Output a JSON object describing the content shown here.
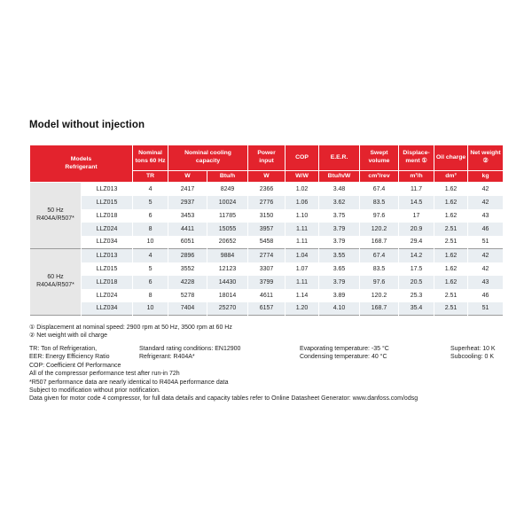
{
  "title": "Model without injection",
  "colors": {
    "header_red": "#e3232d",
    "row_stripe": "#e9eef2",
    "group_cell_gray": "#e7e7e7",
    "divider_gray": "#9b9b9b"
  },
  "table": {
    "header": {
      "models": "Models\nRefrigerant",
      "nominal_tons": "Nominal\ntons 60 Hz",
      "cooling_capacity": "Nominal cooling\ncapacity",
      "power_input": "Power\ninput",
      "cop": "COP",
      "eer": "E.E.R.",
      "swept_volume": "Swept\nvolume",
      "displacement": "Displace-\nment ①",
      "oil_charge": "Oil charge",
      "net_weight": "Net weight\n②",
      "units": [
        "TR",
        "W",
        "Btu/h",
        "W",
        "W/W",
        "Btu/h/W",
        "cm³/rev",
        "m³/h",
        "dm³",
        "kg"
      ]
    },
    "groups": [
      {
        "label": "50 Hz\nR404A/R507*",
        "rows": [
          [
            "LLZ013",
            "4",
            "2417",
            "8249",
            "2366",
            "1.02",
            "3.48",
            "67.4",
            "11.7",
            "1.62",
            "42"
          ],
          [
            "LLZ015",
            "5",
            "2937",
            "10024",
            "2776",
            "1.06",
            "3.62",
            "83.5",
            "14.5",
            "1.62",
            "42"
          ],
          [
            "LLZ018",
            "6",
            "3453",
            "11785",
            "3150",
            "1.10",
            "3.75",
            "97.6",
            "17",
            "1.62",
            "43"
          ],
          [
            "LLZ024",
            "8",
            "4411",
            "15055",
            "3957",
            "1.11",
            "3.79",
            "120.2",
            "20.9",
            "2.51",
            "46"
          ],
          [
            "LLZ034",
            "10",
            "6051",
            "20652",
            "5458",
            "1.11",
            "3.79",
            "168.7",
            "29.4",
            "2.51",
            "51"
          ]
        ]
      },
      {
        "label": "60 Hz\nR404A/R507*",
        "rows": [
          [
            "LLZ013",
            "4",
            "2896",
            "9884",
            "2774",
            "1.04",
            "3.55",
            "67.4",
            "14.2",
            "1.62",
            "42"
          ],
          [
            "LLZ015",
            "5",
            "3552",
            "12123",
            "3307",
            "1.07",
            "3.65",
            "83.5",
            "17.5",
            "1.62",
            "42"
          ],
          [
            "LLZ018",
            "6",
            "4228",
            "14430",
            "3799",
            "1.11",
            "3.79",
            "97.6",
            "20.5",
            "1.62",
            "43"
          ],
          [
            "LLZ024",
            "8",
            "5278",
            "18014",
            "4611",
            "1.14",
            "3.89",
            "120.2",
            "25.3",
            "2.51",
            "46"
          ],
          [
            "LLZ034",
            "10",
            "7404",
            "25270",
            "6157",
            "1.20",
            "4.10",
            "168.7",
            "35.4",
            "2.51",
            "51"
          ]
        ]
      }
    ]
  },
  "notes": {
    "note1": "① Displacement at nominal speed: 2900 rpm at 50 Hz, 3500 rpm at 60 Hz",
    "note2": "② Net weight with oil charge",
    "abbr": [
      "TR: Ton of Refrigeration,",
      "EER: Energy Efficiency Ratio",
      "COP: Coefficient Of Performance"
    ],
    "rating": [
      "Standard rating conditions: EN12900",
      "Refrigerant: R404A*"
    ],
    "temperatures": [
      "Evaporating temperature: -35 °C",
      "Condensing temperature: 40 °C"
    ],
    "superheat": [
      "Superheat: 10 K",
      "Subcooling: 0 K"
    ],
    "footer": [
      "All of the compressor performance test after run-in 72h",
      "*R507 performance data are nearly identical to R404A performance data",
      "Subject to modification without prior notification.",
      "Data given for motor code 4 compressor, for full data details and capacity tables refer to Online Datasheet Generator: www.danfoss.com/odsg"
    ]
  }
}
